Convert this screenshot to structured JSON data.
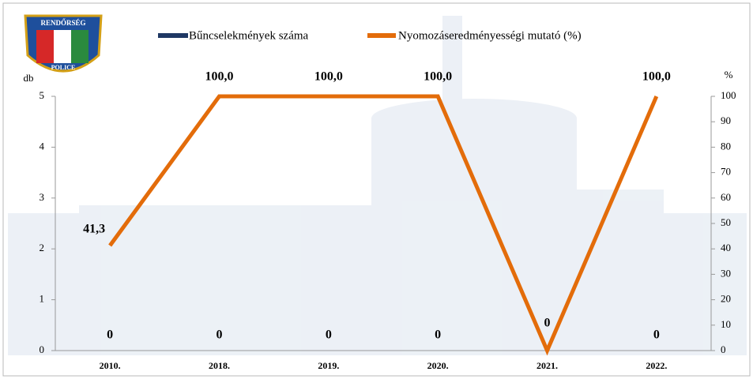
{
  "logo": {
    "top": "RENDŐRSÉG",
    "bottom": "POLICE"
  },
  "chart_data": {
    "type": "bar",
    "categories": [
      "2010.",
      "2018.",
      "2019.",
      "2020.",
      "2021.",
      "2022."
    ],
    "ylabel": "db",
    "y2label": "%",
    "ylim": [
      0,
      5
    ],
    "yticks": [
      0,
      1,
      2,
      3,
      4,
      5
    ],
    "y2lim": [
      0,
      100
    ],
    "y2ticks": [
      0,
      10,
      20,
      30,
      40,
      50,
      60,
      70,
      80,
      90,
      100
    ],
    "legend": "top",
    "series": [
      {
        "name": "Bűncselekmények száma",
        "type": "bar",
        "color": "#1f3864",
        "values": [
          0,
          0,
          0,
          0,
          0,
          0
        ]
      },
      {
        "name": "Nyomozáseredményességi mutató (%)",
        "type": "line",
        "axis": "y2",
        "color": "#e36c0a",
        "values": [
          41.3,
          100,
          100,
          100,
          0,
          100
        ],
        "value_labels": [
          "41,3",
          "100,0",
          "100,0",
          "100,0",
          null,
          "100,0"
        ]
      }
    ]
  }
}
